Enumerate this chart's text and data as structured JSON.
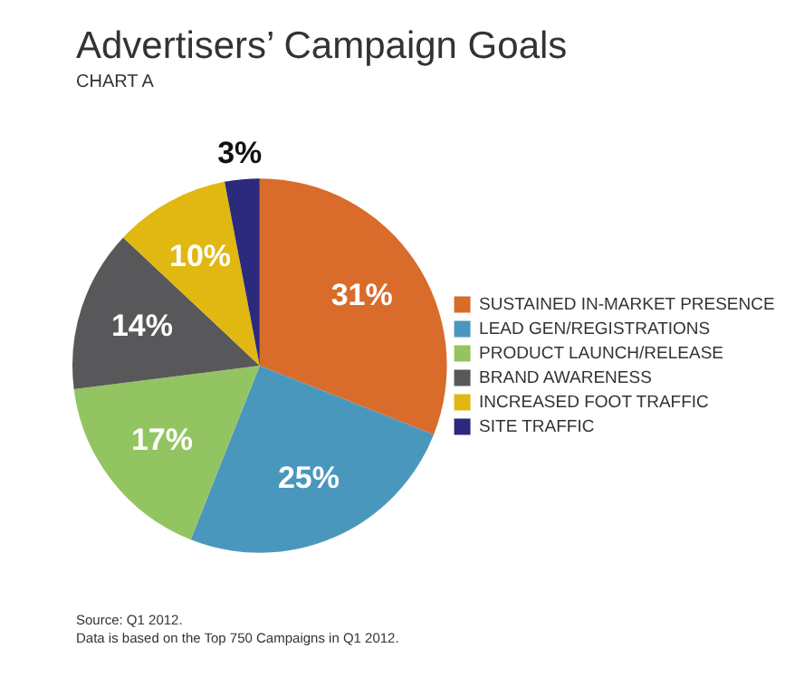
{
  "chart_data": {
    "type": "pie",
    "title": "Advertisers’ Campaign Goals",
    "subtitle": "CHART A",
    "categories": [
      "SUSTAINED IN-MARKET PRESENCE",
      "LEAD GEN/REGISTRATIONS",
      "PRODUCT LAUNCH/RELEASE",
      "BRAND AWARENESS",
      "INCREASED FOOT TRAFFIC",
      "SITE TRAFFIC"
    ],
    "values": [
      31,
      25,
      17,
      14,
      10,
      3
    ],
    "colors": [
      "#d96b2b",
      "#4a97bd",
      "#93c462",
      "#58585a",
      "#e0b811",
      "#2b2a7c"
    ],
    "value_labels": [
      "31%",
      "25%",
      "17%",
      "14%",
      "10%",
      "3%"
    ],
    "legend": "right",
    "annotations": [
      "Source: Q1 2012.",
      "Data is based on the Top 750 Campaigns in Q1 2012."
    ]
  }
}
